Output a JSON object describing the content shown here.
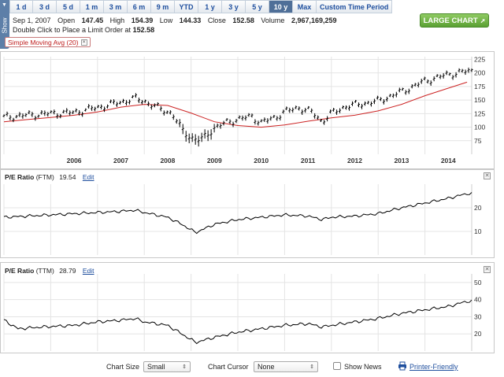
{
  "side_tab": {
    "label": "Show",
    "icon": "chevron-down-icon"
  },
  "toolbar": {
    "ranges": [
      "1 d",
      "3 d",
      "5 d",
      "1 m",
      "3 m",
      "6 m",
      "9 m",
      "YTD",
      "1 y",
      "3 y",
      "5 y",
      "10 y",
      "Max",
      "Custom Time Period"
    ],
    "active": "10 y"
  },
  "quote": {
    "date": "Sep 1, 2007",
    "open_label": "Open",
    "open": "147.45",
    "high_label": "High",
    "high": "154.39",
    "low_label": "Low",
    "low": "144.33",
    "close_label": "Close",
    "close": "152.58",
    "volume_label": "Volume",
    "volume": "2,967,169,259",
    "limit_text": "Double Click to Place a Limit Order at",
    "limit_price": "152.58"
  },
  "indicator_tag": {
    "label": "Simple Moving Avg (20)"
  },
  "large_chart_button": {
    "label": "LARGE CHART",
    "icon": "arrow-right-icon"
  },
  "panels": {
    "ftm": {
      "title": "P/E Ratio",
      "suffix": "(FTM)",
      "value": "19.54",
      "edit": "Edit"
    },
    "ttm": {
      "title": "P/E Ratio",
      "suffix": "(TTM)",
      "value": "28.79",
      "edit": "Edit"
    }
  },
  "bottom": {
    "chart_size_label": "Chart Size",
    "chart_size_value": "Small",
    "cursor_label": "Chart Cursor",
    "cursor_value": "None",
    "show_news_label": "Show News",
    "show_news_checked": false,
    "printer_label": "Printer-Friendly"
  },
  "colors": {
    "price": "#000000",
    "sma": "#cc2222",
    "accent": "#1f4f9e",
    "active_tab": "#4f6f98",
    "large_chart": "#5aa033"
  },
  "chart_data": [
    {
      "type": "line",
      "name": "price",
      "x_ticks": [
        "2006",
        "2007",
        "2008",
        "2009",
        "2010",
        "2011",
        "2012",
        "2013",
        "2014"
      ],
      "y_ticks": [
        75,
        100,
        125,
        150,
        175,
        200,
        225
      ],
      "ylim": [
        50,
        230
      ],
      "xlim": [
        2005.0,
        2015.0
      ],
      "x": [
        2005.0,
        2005.5,
        2006.0,
        2006.5,
        2007.0,
        2007.5,
        2007.8,
        2008.0,
        2008.3,
        2008.6,
        2008.8,
        2009.0,
        2009.2,
        2009.5,
        2009.8,
        2010.0,
        2010.3,
        2010.5,
        2010.8,
        2011.0,
        2011.3,
        2011.6,
        2011.8,
        2012.0,
        2012.3,
        2012.6,
        2013.0,
        2013.5,
        2014.0,
        2014.5,
        2014.9
      ],
      "y": [
        118,
        122,
        125,
        127,
        136,
        146,
        153,
        148,
        135,
        125,
        95,
        80,
        75,
        98,
        110,
        114,
        120,
        108,
        118,
        128,
        136,
        127,
        110,
        125,
        138,
        142,
        148,
        165,
        185,
        197,
        203
      ],
      "sma_series": {
        "name": "Simple Moving Avg (20)",
        "x": [
          2005.0,
          2005.5,
          2006.0,
          2006.5,
          2007.0,
          2007.5,
          2008.0,
          2008.5,
          2009.0,
          2009.5,
          2010.0,
          2010.5,
          2011.0,
          2011.5,
          2012.0,
          2012.5,
          2013.0,
          2013.5,
          2014.0,
          2014.5,
          2014.9
        ],
        "y": [
          110,
          114,
          118,
          122,
          128,
          137,
          142,
          140,
          126,
          110,
          103,
          100,
          104,
          111,
          117,
          122,
          130,
          142,
          158,
          172,
          183
        ]
      }
    },
    {
      "type": "line",
      "name": "P/E Ratio (FTM)",
      "y_ticks": [
        10,
        20
      ],
      "ylim": [
        0,
        30
      ],
      "xlim": [
        2005.0,
        2015.0
      ],
      "x": [
        2005.0,
        2005.5,
        2006.0,
        2006.5,
        2007.0,
        2007.5,
        2007.8,
        2008.0,
        2008.5,
        2008.8,
        2009.1,
        2009.5,
        2010.0,
        2010.5,
        2011.0,
        2011.5,
        2011.8,
        2012.0,
        2012.5,
        2013.0,
        2013.5,
        2014.0,
        2014.5,
        2014.9
      ],
      "y": [
        16,
        16.5,
        17,
        17.5,
        18,
        18.5,
        19,
        18,
        16,
        13,
        9.5,
        13,
        15,
        16,
        17,
        16.5,
        15,
        16,
        16.5,
        17.5,
        20,
        22,
        24,
        26
      ]
    },
    {
      "type": "line",
      "name": "P/E Ratio (TTM)",
      "y_ticks": [
        20,
        30,
        40,
        50
      ],
      "ylim": [
        10,
        55
      ],
      "xlim": [
        2005.0,
        2015.0
      ],
      "x": [
        2005.0,
        2005.3,
        2005.8,
        2006.5,
        2007.0,
        2007.5,
        2007.8,
        2008.0,
        2008.5,
        2008.8,
        2009.1,
        2009.5,
        2010.0,
        2010.5,
        2011.0,
        2011.5,
        2011.8,
        2012.0,
        2012.5,
        2013.0,
        2013.5,
        2014.0,
        2014.5,
        2014.9
      ],
      "y": [
        28,
        23,
        24,
        25,
        27,
        28,
        29,
        27,
        25,
        20,
        15,
        18,
        21,
        23,
        25,
        26,
        24,
        25,
        27,
        29,
        32,
        34,
        36,
        39
      ]
    }
  ]
}
